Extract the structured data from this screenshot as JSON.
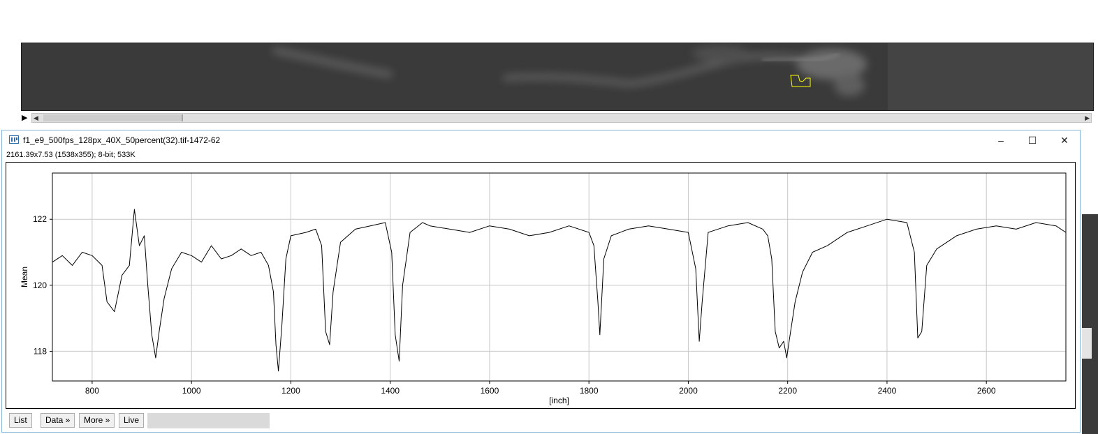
{
  "window": {
    "title": "f1_e9_500fps_128px_40X_50percent(32).tif-1472-62",
    "info": "2161.39x7.53   (1538x355); 8-bit; 533K",
    "minimize_icon": "minimize-icon",
    "maximize_icon": "maximize-icon",
    "close_icon": "close-icon"
  },
  "image_window": {
    "play_icon": "play-icon",
    "scroll_left_icon": "chevron-left-icon",
    "scroll_right_icon": "chevron-right-icon",
    "roi_color": "#ffff00"
  },
  "buttons": {
    "list": "List",
    "data": "Data »",
    "more": "More »",
    "live": "Live"
  },
  "chart_data": {
    "type": "line",
    "title": "",
    "xlabel": "[inch]",
    "ylabel": "Mean",
    "xlim": [
      720,
      2760
    ],
    "ylim": [
      117.1,
      123.4
    ],
    "x_ticks": [
      800,
      1000,
      1200,
      1400,
      1600,
      1800,
      2000,
      2200,
      2400,
      2600
    ],
    "y_ticks": [
      118,
      120,
      122
    ],
    "grid": true,
    "line_color": "#000000",
    "series": [
      {
        "x": [
          720,
          740,
          760,
          780,
          800,
          820,
          830,
          845,
          860,
          875,
          885,
          895,
          905,
          912,
          920,
          928,
          935,
          945,
          960,
          980,
          1000,
          1020,
          1040,
          1060,
          1080,
          1100,
          1120,
          1140,
          1155,
          1165,
          1170,
          1175,
          1182,
          1190,
          1200,
          1230,
          1250,
          1262,
          1270,
          1278,
          1285,
          1300,
          1330,
          1360,
          1390,
          1403,
          1410,
          1418,
          1425,
          1440,
          1465,
          1480,
          1520,
          1560,
          1600,
          1640,
          1680,
          1720,
          1760,
          1800,
          1810,
          1818,
          1822,
          1830,
          1845,
          1880,
          1920,
          1960,
          2000,
          2015,
          2022,
          2028,
          2040,
          2080,
          2120,
          2150,
          2160,
          2168,
          2175,
          2183,
          2192,
          2198,
          2205,
          2215,
          2230,
          2250,
          2280,
          2320,
          2360,
          2400,
          2440,
          2455,
          2462,
          2470,
          2480,
          2500,
          2540,
          2580,
          2620,
          2660,
          2700,
          2740,
          2760
        ],
        "y": [
          120.7,
          120.9,
          120.6,
          121.0,
          120.9,
          120.6,
          119.5,
          119.2,
          120.3,
          120.6,
          122.3,
          121.2,
          121.5,
          120.0,
          118.5,
          117.8,
          118.6,
          119.6,
          120.5,
          121.0,
          120.9,
          120.7,
          121.2,
          120.8,
          120.9,
          121.1,
          120.9,
          121.0,
          120.6,
          119.8,
          118.2,
          117.4,
          118.8,
          120.8,
          121.5,
          121.6,
          121.7,
          121.2,
          118.6,
          118.2,
          119.8,
          121.3,
          121.7,
          121.8,
          121.9,
          121.0,
          118.5,
          117.7,
          120.0,
          121.6,
          121.9,
          121.8,
          121.7,
          121.6,
          121.8,
          121.7,
          121.5,
          121.6,
          121.8,
          121.6,
          121.2,
          119.5,
          118.5,
          120.8,
          121.5,
          121.7,
          121.8,
          121.7,
          121.6,
          120.5,
          118.3,
          119.5,
          121.6,
          121.8,
          121.9,
          121.7,
          121.5,
          120.8,
          118.6,
          118.1,
          118.3,
          117.8,
          118.5,
          119.5,
          120.4,
          121.0,
          121.2,
          121.6,
          121.8,
          122.0,
          121.9,
          121.0,
          118.4,
          118.6,
          120.6,
          121.1,
          121.5,
          121.7,
          121.8,
          121.7,
          121.9,
          121.8,
          121.6
        ]
      }
    ]
  }
}
